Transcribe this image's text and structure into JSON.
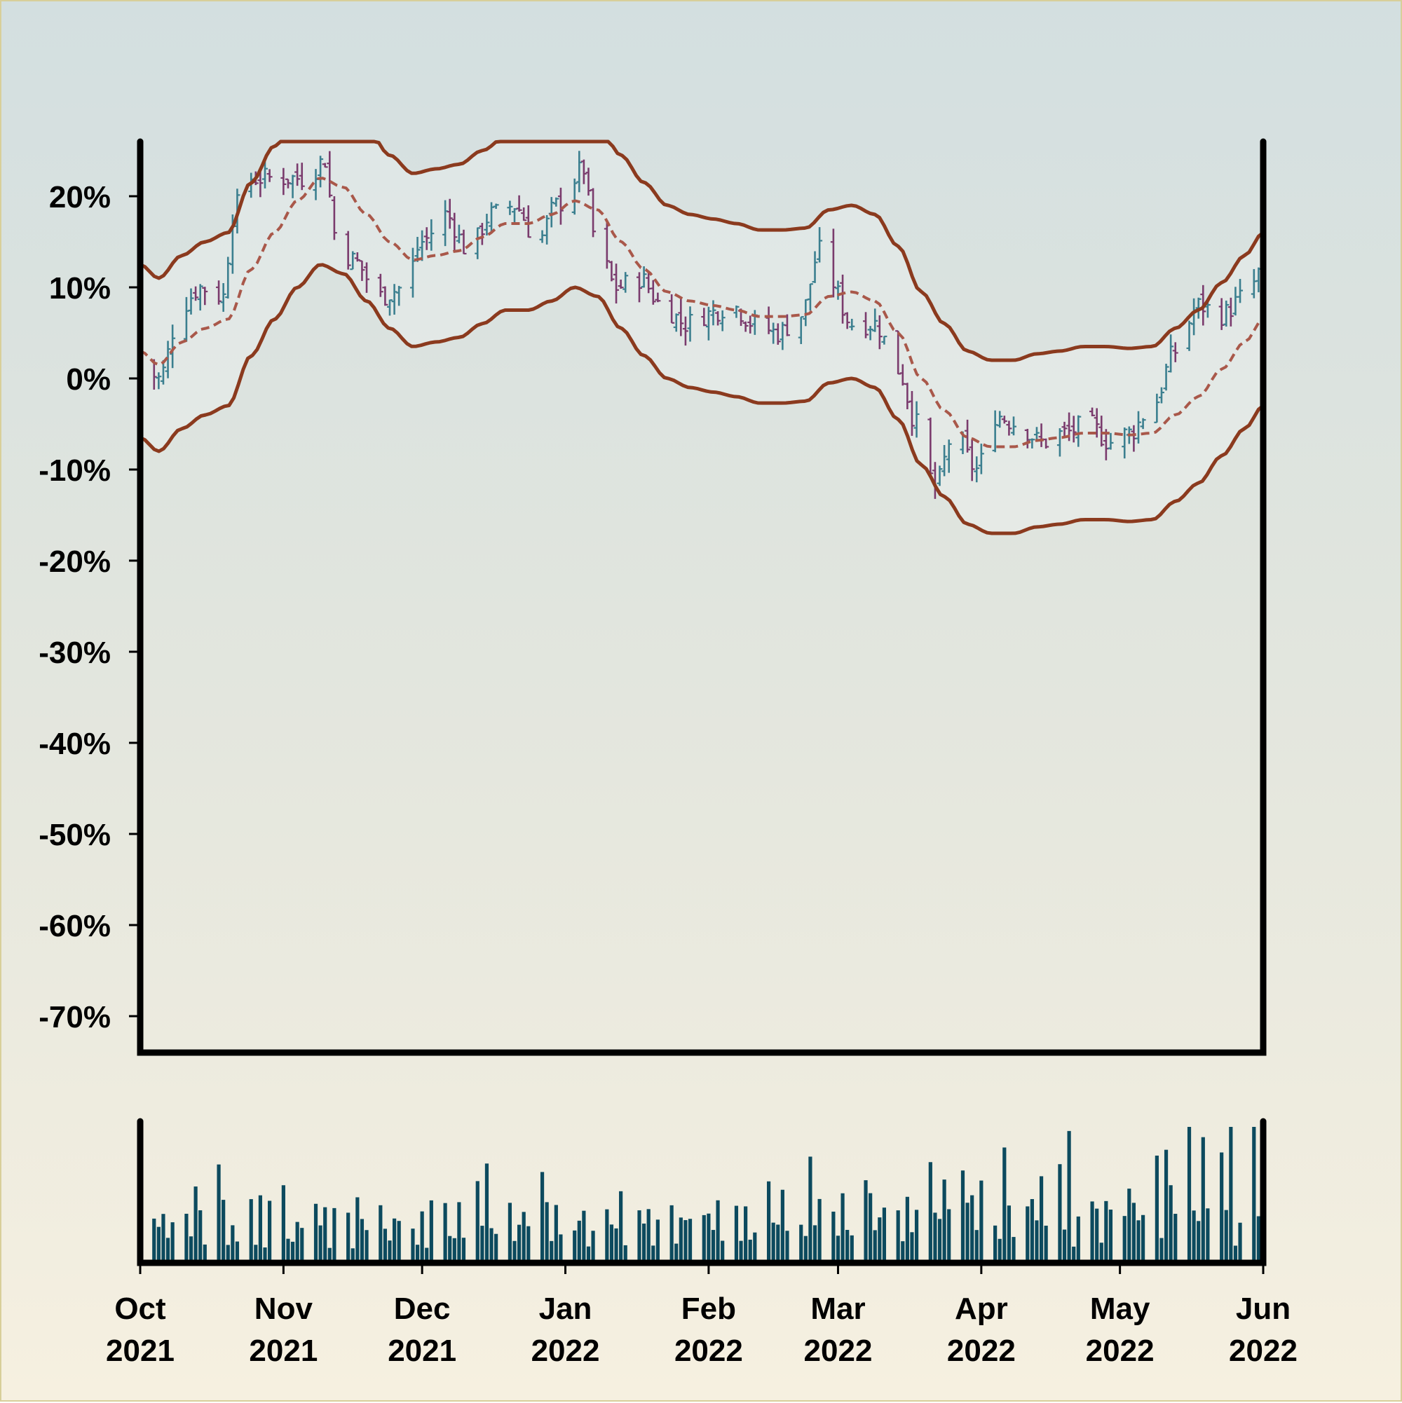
{
  "chart_data": {
    "type": "ohlc",
    "title": "",
    "xlabel": "",
    "ylabel": "",
    "units": "percent change",
    "date_range": [
      "2021-10-01",
      "2022-06-01"
    ],
    "ylim": [
      -74,
      26
    ],
    "y_ticks": [
      20,
      10,
      0,
      -10,
      -20,
      -30,
      -40,
      -50,
      -60,
      -70
    ],
    "y_tick_labels": [
      "20%",
      "10%",
      "0%",
      "-10%",
      "-20%",
      "-30%",
      "-40%",
      "-50%",
      "-60%",
      "-70%"
    ],
    "x_ticks": [
      {
        "date": "2021-10-01",
        "month": "Oct",
        "year": "2021"
      },
      {
        "date": "2021-11-01",
        "month": "Nov",
        "year": "2021"
      },
      {
        "date": "2021-12-01",
        "month": "Dec",
        "year": "2021"
      },
      {
        "date": "2022-01-01",
        "month": "Jan",
        "year": "2022"
      },
      {
        "date": "2022-02-01",
        "month": "Feb",
        "year": "2022"
      },
      {
        "date": "2022-03-01",
        "month": "Mar",
        "year": "2022"
      },
      {
        "date": "2022-04-01",
        "month": "Apr",
        "year": "2022"
      },
      {
        "date": "2022-05-01",
        "month": "May",
        "year": "2022"
      },
      {
        "date": "2022-06-01",
        "month": "Jun",
        "year": "2022"
      }
    ],
    "price_close_keypoints": [
      [
        "2021-10-01",
        2
      ],
      [
        "2021-10-05",
        0
      ],
      [
        "2021-10-10",
        8
      ],
      [
        "2021-10-14",
        10
      ],
      [
        "2021-10-19",
        9
      ],
      [
        "2021-10-21",
        18
      ],
      [
        "2021-10-24",
        22
      ],
      [
        "2021-10-31",
        22
      ],
      [
        "2021-11-06",
        22
      ],
      [
        "2021-11-10",
        24
      ],
      [
        "2021-11-12",
        16
      ],
      [
        "2021-11-16",
        13
      ],
      [
        "2021-11-22",
        9
      ],
      [
        "2021-11-27",
        10
      ],
      [
        "2021-12-01",
        15
      ],
      [
        "2021-12-06",
        18
      ],
      [
        "2021-12-11",
        14
      ],
      [
        "2021-12-16",
        18
      ],
      [
        "2021-12-21",
        19
      ],
      [
        "2021-12-26",
        15
      ],
      [
        "2021-12-30",
        19
      ],
      [
        "2022-01-05",
        23
      ],
      [
        "2022-01-07",
        16
      ],
      [
        "2022-01-12",
        10
      ],
      [
        "2022-01-17",
        11
      ],
      [
        "2022-01-22",
        8
      ],
      [
        "2022-01-27",
        6
      ],
      [
        "2022-01-31",
        7
      ],
      [
        "2022-02-06",
        8
      ],
      [
        "2022-02-11",
        6
      ],
      [
        "2022-02-16",
        5
      ],
      [
        "2022-02-21",
        7
      ],
      [
        "2022-02-25",
        14
      ],
      [
        "2022-02-27",
        11
      ],
      [
        "2022-03-04",
        6
      ],
      [
        "2022-03-09",
        6
      ],
      [
        "2022-03-14",
        1
      ],
      [
        "2022-03-18",
        -5
      ],
      [
        "2022-03-22",
        -12
      ],
      [
        "2022-03-26",
        -6
      ],
      [
        "2022-03-31",
        -10
      ],
      [
        "2022-04-04",
        -4
      ],
      [
        "2022-04-09",
        -5
      ],
      [
        "2022-04-14",
        -7
      ],
      [
        "2022-04-19",
        -6
      ],
      [
        "2022-04-24",
        -5
      ],
      [
        "2022-04-29",
        -7
      ],
      [
        "2022-05-03",
        -6
      ],
      [
        "2022-05-08",
        -3
      ],
      [
        "2022-05-13",
        3
      ],
      [
        "2022-05-18",
        8
      ],
      [
        "2022-05-23",
        7
      ],
      [
        "2022-05-28",
        9
      ],
      [
        "2022-06-01",
        12
      ]
    ],
    "moving_average_keypoints": [
      [
        "2021-10-01",
        3
      ],
      [
        "2021-10-05",
        1.5
      ],
      [
        "2021-10-10",
        4
      ],
      [
        "2021-10-15",
        5.5
      ],
      [
        "2021-10-20",
        6.5
      ],
      [
        "2021-10-25",
        12
      ],
      [
        "2021-10-30",
        16
      ],
      [
        "2021-11-04",
        19.5
      ],
      [
        "2021-11-09",
        22
      ],
      [
        "2021-11-14",
        21
      ],
      [
        "2021-11-19",
        18
      ],
      [
        "2021-11-24",
        15
      ],
      [
        "2021-11-29",
        13
      ],
      [
        "2021-12-04",
        13.5
      ],
      [
        "2021-12-09",
        14
      ],
      [
        "2021-12-14",
        15.5
      ],
      [
        "2021-12-19",
        17
      ],
      [
        "2021-12-24",
        17
      ],
      [
        "2021-12-29",
        18
      ],
      [
        "2022-01-03",
        19.5
      ],
      [
        "2022-01-08",
        18.5
      ],
      [
        "2022-01-13",
        15
      ],
      [
        "2022-01-18",
        12
      ],
      [
        "2022-01-23",
        9.5
      ],
      [
        "2022-01-28",
        8.5
      ],
      [
        "2022-02-02",
        8
      ],
      [
        "2022-02-07",
        7.5
      ],
      [
        "2022-02-12",
        6.8
      ],
      [
        "2022-02-17",
        6.8
      ],
      [
        "2022-02-22",
        7
      ],
      [
        "2022-02-27",
        9
      ],
      [
        "2022-03-04",
        9.5
      ],
      [
        "2022-03-09",
        8.5
      ],
      [
        "2022-03-14",
        5
      ],
      [
        "2022-03-19",
        0
      ],
      [
        "2022-03-24",
        -3.5
      ],
      [
        "2022-03-29",
        -6.5
      ],
      [
        "2022-04-03",
        -7.5
      ],
      [
        "2022-04-08",
        -7.5
      ],
      [
        "2022-04-13",
        -6.8
      ],
      [
        "2022-04-18",
        -6.5
      ],
      [
        "2022-04-23",
        -6
      ],
      [
        "2022-04-28",
        -6
      ],
      [
        "2022-05-03",
        -6.2
      ],
      [
        "2022-05-08",
        -6
      ],
      [
        "2022-05-13",
        -4
      ],
      [
        "2022-05-18",
        -2
      ],
      [
        "2022-05-23",
        1
      ],
      [
        "2022-05-28",
        4
      ],
      [
        "2022-06-01",
        6.5
      ]
    ],
    "band_width": 9.5,
    "band_cap": 26,
    "volume_pattern": [
      5,
      9,
      6,
      11,
      4,
      7,
      8,
      3,
      10,
      6,
      5,
      12,
      7,
      4,
      9,
      6,
      8,
      5,
      11,
      3,
      7,
      10,
      6,
      4,
      8
    ],
    "colors": {
      "up": "#3b7f8f",
      "down": "#7a3b6d",
      "band": "#8b3a1e",
      "moving_average": "#a9584a",
      "volume": "#0c4a5e",
      "axis": "#000000"
    }
  }
}
